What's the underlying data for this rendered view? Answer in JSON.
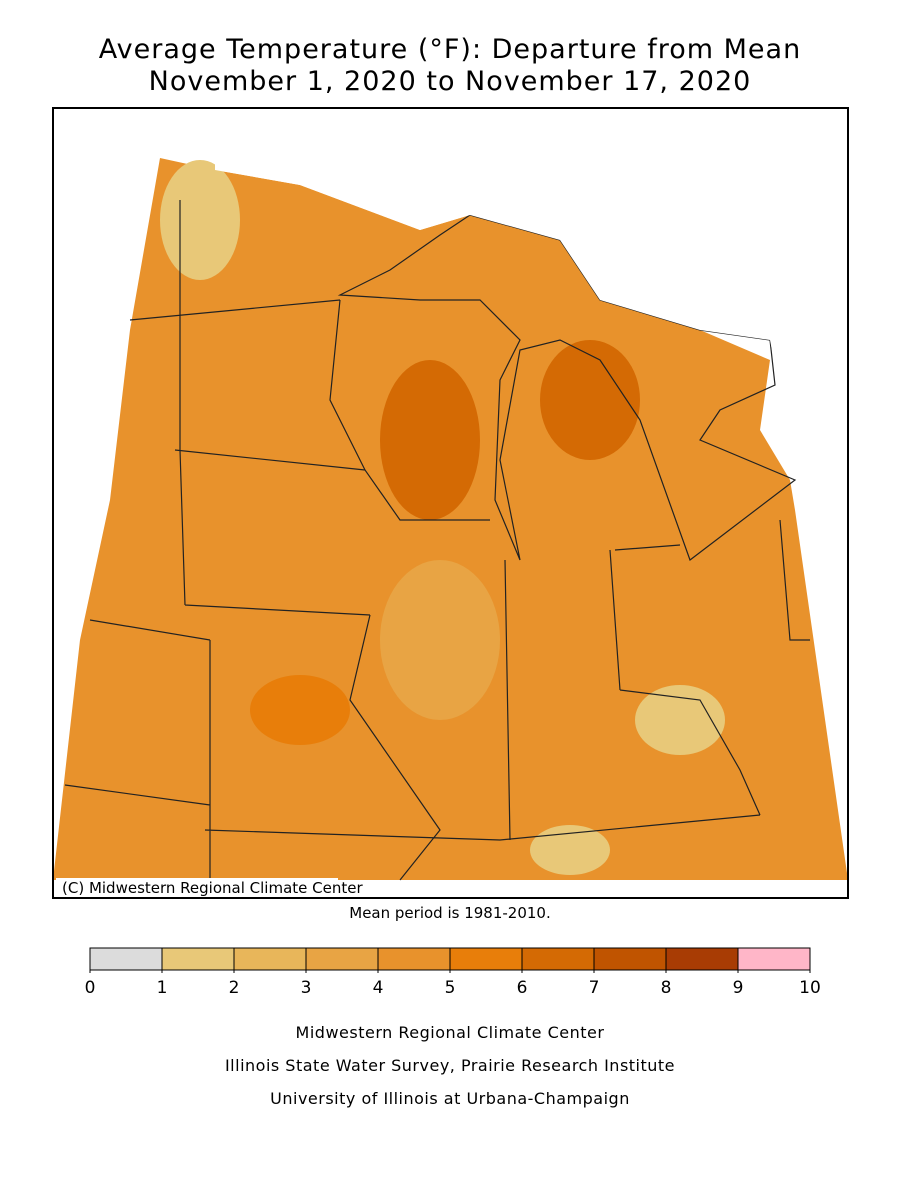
{
  "header": {
    "title": "Average Temperature (°F): Departure from Mean",
    "subtitle": "November 1, 2020 to November 17, 2020"
  },
  "map": {
    "copyright": "(C) Midwestern Regional Climate Center",
    "note": "Mean period is 1981-2010."
  },
  "legend": {
    "ticks": [
      0,
      1,
      2,
      3,
      4,
      5,
      6,
      7,
      8,
      9,
      10
    ],
    "colors": [
      "#dcdcdc",
      "#e8c878",
      "#e8b65a",
      "#e8a444",
      "#e8922c",
      "#e87e0a",
      "#d46a04",
      "#c05400",
      "#a83c04",
      "#ffb6c8"
    ]
  },
  "footer": {
    "lines": [
      "Midwestern Regional Climate Center",
      "Illinois State Water Survey, Prairie Research Institute",
      "University of Illinois at Urbana-Champaign"
    ]
  }
}
